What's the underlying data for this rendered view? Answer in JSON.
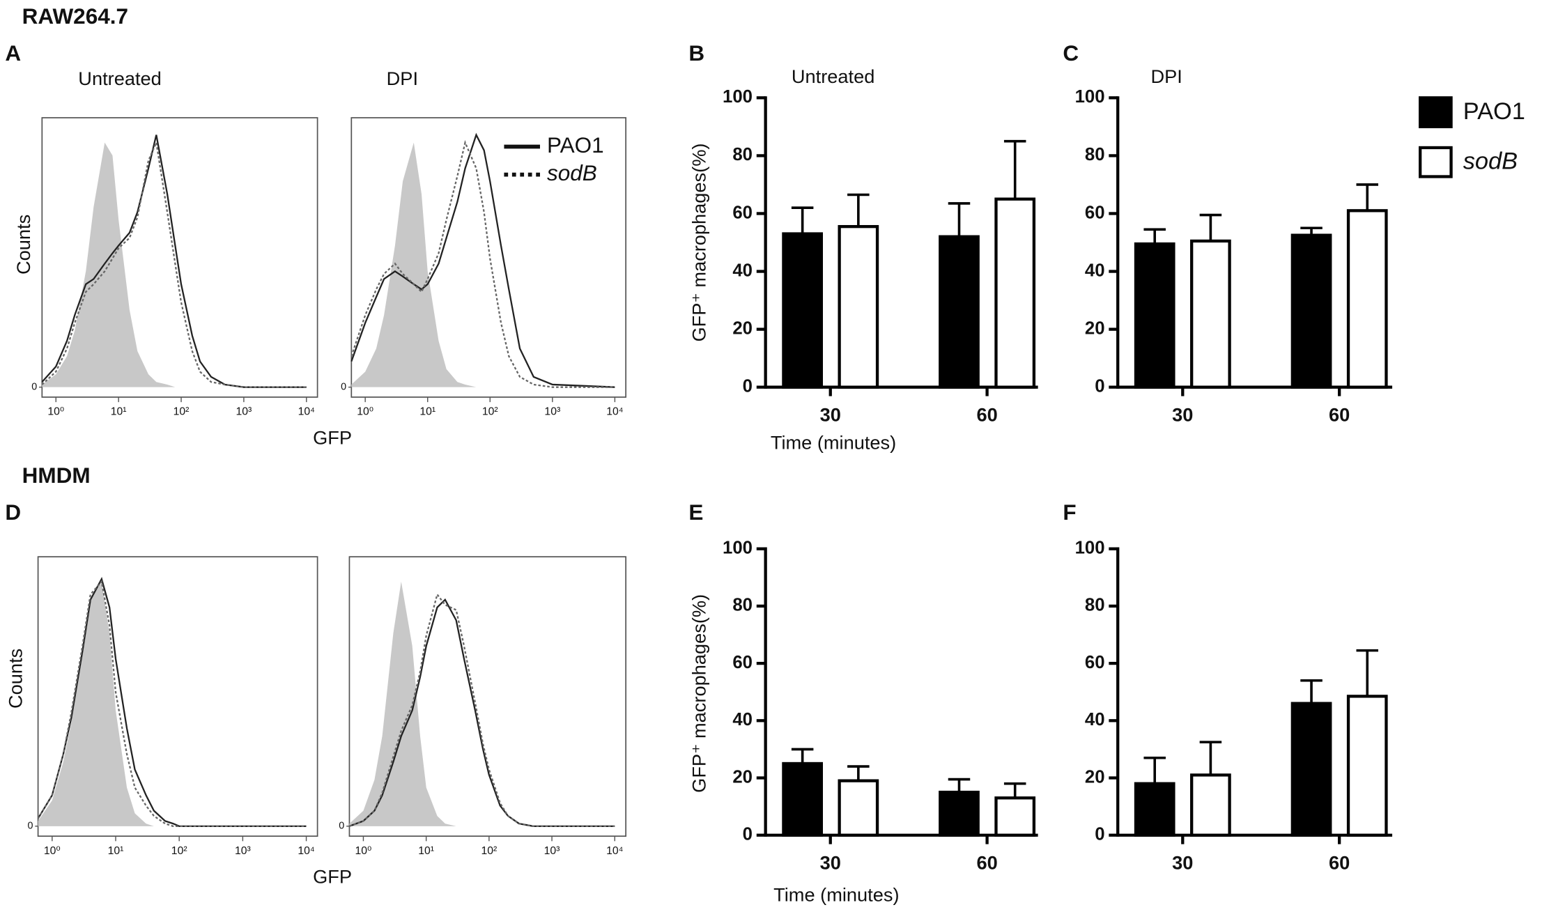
{
  "row_labels": [
    "RAW264.7",
    "HMDM"
  ],
  "chart_data": [
    {
      "type": "line",
      "panel": "A",
      "title": "Untreated",
      "xlabel": "GFP",
      "ylabel": "Counts",
      "xscale": "log",
      "x": [
        0.6,
        1,
        1.5,
        2,
        3,
        4,
        6,
        8,
        10,
        15,
        20,
        30,
        40,
        60,
        80,
        100,
        150,
        200,
        300,
        500,
        1000,
        10000
      ],
      "xlim": [
        0.6,
        15000
      ],
      "ylim": [
        0,
        100
      ],
      "xticks": [
        {
          "value": 1,
          "label": "10⁰"
        },
        {
          "value": 10,
          "label": "10¹"
        },
        {
          "value": 100,
          "label": "10²"
        },
        {
          "value": 1000,
          "label": "10³"
        },
        {
          "value": 10000,
          "label": "10⁴"
        }
      ],
      "yticks": [
        0
      ],
      "series": [
        {
          "color": "#c8c8c8",
          "fill": true,
          "values": [
            1,
            5,
            12,
            22,
            45,
            70,
            95,
            90,
            65,
            30,
            14,
            5,
            2,
            1,
            0,
            0,
            0,
            0,
            0,
            0,
            0,
            0
          ]
        },
        {
          "color": "#222222",
          "style": "solid",
          "values": [
            2,
            8,
            18,
            28,
            40,
            42,
            48,
            52,
            55,
            60,
            68,
            85,
            98,
            75,
            55,
            40,
            20,
            10,
            4,
            1,
            0,
            0
          ]
        },
        {
          "color": "#666666",
          "style": "dotted",
          "values": [
            1,
            6,
            15,
            25,
            37,
            40,
            45,
            50,
            54,
            58,
            66,
            88,
            95,
            68,
            48,
            33,
            14,
            6,
            2,
            1,
            0,
            0
          ]
        }
      ]
    },
    {
      "type": "line",
      "title": "DPI",
      "xscale": "log",
      "legend": true,
      "x": [
        0.6,
        1,
        1.5,
        2,
        3,
        4,
        6,
        8,
        10,
        15,
        20,
        30,
        40,
        60,
        80,
        100,
        150,
        200,
        300,
        500,
        1000,
        10000
      ],
      "xlim": [
        0.6,
        15000
      ],
      "ylim": [
        0,
        100
      ],
      "xticks": [
        {
          "value": 1,
          "label": "10⁰"
        },
        {
          "value": 10,
          "label": "10¹"
        },
        {
          "value": 100,
          "label": "10²"
        },
        {
          "value": 1000,
          "label": "10³"
        },
        {
          "value": 10000,
          "label": "10⁴"
        }
      ],
      "yticks": [
        0
      ],
      "series": [
        {
          "color": "#c8c8c8",
          "fill": true,
          "values": [
            1,
            6,
            15,
            28,
            55,
            80,
            95,
            75,
            45,
            18,
            7,
            2,
            1,
            0,
            0,
            0,
            0,
            0,
            0,
            0,
            0,
            0
          ]
        },
        {
          "name": "PAO1",
          "color": "#222222",
          "style": "solid",
          "values": [
            10,
            25,
            35,
            42,
            45,
            43,
            40,
            38,
            40,
            48,
            58,
            72,
            85,
            98,
            92,
            80,
            55,
            38,
            15,
            4,
            1,
            0
          ]
        },
        {
          "name": "sodB",
          "color": "#666666",
          "style": "dotted",
          "values": [
            12,
            28,
            38,
            44,
            48,
            44,
            40,
            37,
            42,
            52,
            65,
            82,
            95,
            85,
            68,
            50,
            25,
            12,
            4,
            1,
            0,
            0
          ]
        }
      ]
    },
    {
      "type": "bar",
      "panel": "B",
      "title": "Untreated",
      "xlabel": "Time (minutes)",
      "ylabel": "GFP⁺ macrophages(%)",
      "categories": [
        "30",
        "60"
      ],
      "ylim": [
        0,
        100
      ],
      "yticks": [
        0,
        20,
        40,
        60,
        80,
        100
      ],
      "series": [
        {
          "color": "#000000",
          "values": [
            53,
            52
          ],
          "errors": [
            9,
            11.5
          ]
        },
        {
          "color": "#ffffff",
          "values": [
            55.5,
            65
          ],
          "errors": [
            11,
            20
          ]
        }
      ]
    },
    {
      "type": "bar",
      "panel": "C",
      "title": "DPI",
      "legend": true,
      "categories": [
        "30",
        "60"
      ],
      "ylim": [
        0,
        100
      ],
      "yticks": [
        0,
        20,
        40,
        60,
        80,
        100
      ],
      "series": [
        {
          "name": "PAO1",
          "color": "#000000",
          "values": [
            49.5,
            52.5
          ],
          "errors": [
            5,
            2.5
          ]
        },
        {
          "name": "sodB",
          "color": "#ffffff",
          "values": [
            50.5,
            61
          ],
          "errors": [
            9,
            9
          ]
        }
      ]
    },
    {
      "type": "line",
      "panel": "D",
      "xlabel": "GFP",
      "ylabel": "Counts",
      "xscale": "log",
      "x": [
        0.6,
        1,
        1.5,
        2,
        3,
        4,
        6,
        8,
        10,
        15,
        20,
        30,
        40,
        60,
        80,
        100,
        150,
        200,
        300,
        500,
        1000,
        10000
      ],
      "xlim": [
        0.6,
        15000
      ],
      "ylim": [
        0,
        100
      ],
      "xticks": [
        {
          "value": 1,
          "label": "10⁰"
        },
        {
          "value": 10,
          "label": "10¹"
        },
        {
          "value": 100,
          "label": "10²"
        },
        {
          "value": 1000,
          "label": "10³"
        },
        {
          "value": 10000,
          "label": "10⁴"
        }
      ],
      "yticks": [
        0
      ],
      "series": [
        {
          "color": "#c8c8c8",
          "fill": true,
          "values": [
            2,
            10,
            25,
            40,
            70,
            88,
            95,
            75,
            45,
            15,
            5,
            1,
            0,
            0,
            0,
            0,
            0,
            0,
            0,
            0,
            0,
            0
          ]
        },
        {
          "color": "#222222",
          "style": "solid",
          "values": [
            3,
            12,
            28,
            42,
            68,
            88,
            96,
            85,
            65,
            38,
            22,
            12,
            6,
            2,
            1,
            0,
            0,
            0,
            0,
            0,
            0,
            0
          ]
        },
        {
          "color": "#666666",
          "style": "dotted",
          "values": [
            3,
            12,
            28,
            44,
            70,
            90,
            95,
            78,
            52,
            28,
            15,
            8,
            4,
            1,
            0,
            0,
            0,
            0,
            0,
            0,
            0,
            0
          ]
        }
      ]
    },
    {
      "type": "line",
      "xscale": "log",
      "x": [
        0.6,
        1,
        1.5,
        2,
        3,
        4,
        6,
        8,
        10,
        15,
        20,
        30,
        40,
        60,
        80,
        100,
        150,
        200,
        300,
        500,
        1000,
        10000
      ],
      "xlim": [
        0.6,
        15000
      ],
      "ylim": [
        0,
        100
      ],
      "xticks": [
        {
          "value": 1,
          "label": "10⁰"
        },
        {
          "value": 10,
          "label": "10¹"
        },
        {
          "value": 100,
          "label": "10²"
        },
        {
          "value": 1000,
          "label": "10³"
        },
        {
          "value": 10000,
          "label": "10⁴"
        }
      ],
      "yticks": [
        0
      ],
      "series": [
        {
          "color": "#c8c8c8",
          "fill": true,
          "values": [
            1,
            6,
            18,
            35,
            75,
            95,
            70,
            35,
            15,
            4,
            1,
            0,
            0,
            0,
            0,
            0,
            0,
            0,
            0,
            0,
            0,
            0
          ]
        },
        {
          "color": "#222222",
          "style": "solid",
          "values": [
            0,
            2,
            6,
            12,
            25,
            35,
            45,
            58,
            70,
            85,
            88,
            80,
            65,
            45,
            30,
            20,
            8,
            4,
            1,
            0,
            0,
            0
          ]
        },
        {
          "color": "#666666",
          "style": "dotted",
          "values": [
            0,
            2,
            6,
            13,
            27,
            37,
            47,
            60,
            74,
            90,
            86,
            84,
            70,
            48,
            32,
            22,
            9,
            4,
            1,
            0,
            0,
            0
          ]
        }
      ]
    },
    {
      "type": "bar",
      "panel": "E",
      "xlabel": "Time (minutes)",
      "ylabel": "GFP⁺ macrophages(%)",
      "categories": [
        "30",
        "60"
      ],
      "ylim": [
        0,
        100
      ],
      "yticks": [
        0,
        20,
        40,
        60,
        80,
        100
      ],
      "series": [
        {
          "color": "#000000",
          "values": [
            25,
            15
          ],
          "errors": [
            5,
            4.5
          ]
        },
        {
          "color": "#ffffff",
          "values": [
            19,
            13
          ],
          "errors": [
            5,
            5
          ]
        }
      ]
    },
    {
      "type": "bar",
      "panel": "F",
      "categories": [
        "30",
        "60"
      ],
      "ylim": [
        0,
        100
      ],
      "yticks": [
        0,
        20,
        40,
        60,
        80,
        100
      ],
      "series": [
        {
          "color": "#000000",
          "values": [
            18,
            46
          ],
          "errors": [
            9,
            8
          ]
        },
        {
          "color": "#ffffff",
          "values": [
            21,
            48.5
          ],
          "errors": [
            11.5,
            16
          ]
        }
      ]
    }
  ]
}
